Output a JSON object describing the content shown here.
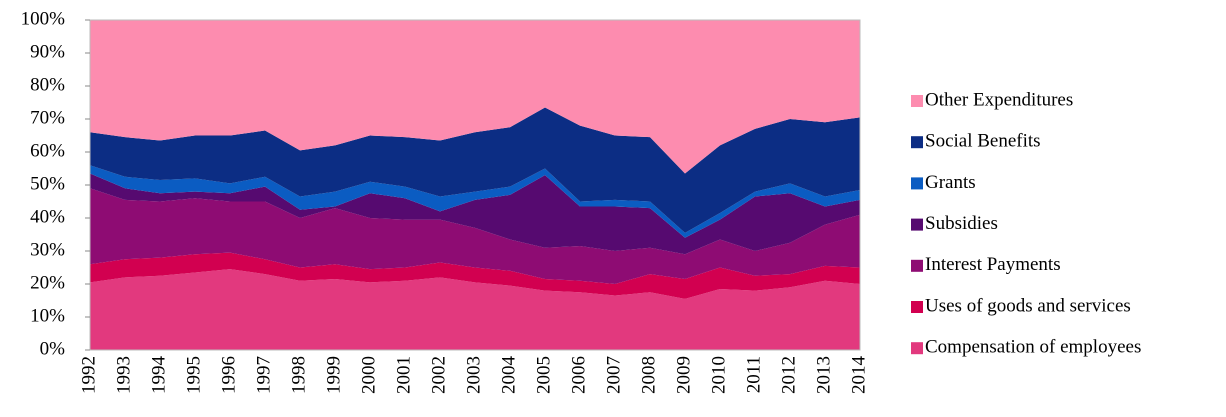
{
  "chart_data": {
    "type": "stacked_area_100",
    "categories": [
      "1992",
      "1993",
      "1994",
      "1995",
      "1996",
      "1997",
      "1998",
      "1999",
      "2000",
      "2001",
      "2002",
      "2003",
      "2004",
      "2005",
      "2006",
      "2007",
      "2008",
      "2009",
      "2010",
      "2011",
      "2012",
      "2013",
      "2014"
    ],
    "series": [
      {
        "name": "Compensation of employees",
        "color": "#e2397e",
        "values": [
          20.5,
          22,
          22.5,
          23.5,
          24.5,
          23,
          21,
          21.5,
          20.5,
          21,
          22,
          20.5,
          19.5,
          18,
          17.5,
          16.5,
          17.5,
          15.5,
          18.5,
          18,
          19,
          21,
          20
        ]
      },
      {
        "name": "Uses of goods and services",
        "color": "#d20050",
        "values": [
          5.5,
          5.5,
          5.5,
          5.5,
          5,
          4.5,
          4,
          4.5,
          4,
          4,
          4.5,
          4.5,
          4.5,
          3.5,
          3.5,
          3.5,
          5.5,
          6,
          6.5,
          4.5,
          4,
          4.5,
          5
        ]
      },
      {
        "name": "Interest Payments",
        "color": "#8e0c73",
        "values": [
          23,
          18,
          17,
          17,
          15.5,
          17.5,
          15,
          17,
          15.5,
          14.5,
          13,
          12,
          9.5,
          9.5,
          10.5,
          10,
          8,
          7.5,
          8.5,
          7.5,
          9.5,
          12.5,
          16
        ]
      },
      {
        "name": "Subsidies",
        "color": "#560a70",
        "values": [
          4.5,
          3.5,
          2.5,
          2,
          2.5,
          4.5,
          2.5,
          0.5,
          7.5,
          6.5,
          2.5,
          8.5,
          13.5,
          22,
          12,
          13.5,
          12,
          5,
          6,
          16.5,
          15,
          5.5,
          4.5
        ]
      },
      {
        "name": "Grants",
        "color": "#0b5cc2",
        "values": [
          2.5,
          3.5,
          4,
          4,
          3,
          3,
          4,
          4.5,
          3.5,
          3.5,
          4.5,
          2.5,
          2.5,
          2,
          1.5,
          2,
          2,
          1.5,
          2,
          1.5,
          3,
          3,
          3
        ]
      },
      {
        "name": "Social Benefits",
        "color": "#0c2d84",
        "values": [
          10,
          12,
          12,
          13,
          14.5,
          14,
          14,
          14,
          14,
          15,
          17,
          18,
          18,
          18.5,
          23,
          19.5,
          19.5,
          18,
          20.5,
          19,
          19.5,
          22.5,
          22
        ]
      },
      {
        "name": "Other Expenditures",
        "color": "#fd8caf",
        "values": [
          34,
          35.5,
          36.5,
          35,
          35,
          33.5,
          39.5,
          38,
          35,
          35.5,
          36.5,
          34,
          32.5,
          26.5,
          32,
          35,
          35.5,
          46.5,
          38,
          33,
          30,
          31,
          29.5
        ]
      }
    ],
    "ylim": [
      0,
      100
    ],
    "yticks": [
      {
        "value": 0,
        "label": "0%"
      },
      {
        "value": 10,
        "label": "10%"
      },
      {
        "value": 20,
        "label": "20%"
      },
      {
        "value": 30,
        "label": "30%"
      },
      {
        "value": 40,
        "label": "40%"
      },
      {
        "value": 50,
        "label": "50%"
      },
      {
        "value": 60,
        "label": "60%"
      },
      {
        "value": 70,
        "label": "70%"
      },
      {
        "value": 80,
        "label": "80%"
      },
      {
        "value": 90,
        "label": "90%"
      },
      {
        "value": 100,
        "label": "100%"
      }
    ],
    "legend": "right"
  }
}
